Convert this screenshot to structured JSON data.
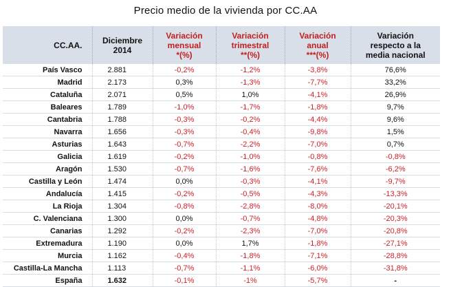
{
  "title": "Precio medio de la vivienda por CC.AA",
  "headers": {
    "ccaa": "CC.AA.",
    "diciembre": [
      "Diciembre",
      "2014"
    ],
    "mensual": [
      "Variación",
      "mensual",
      "*(%)"
    ],
    "trimestral": [
      "Variación",
      "trimestral",
      "**(%)"
    ],
    "anual": [
      "Variación",
      "anual",
      "***(%)"
    ],
    "nacional": [
      "Variación",
      "respecto a la",
      "media nacional"
    ]
  },
  "colors": {
    "header_bg": "#d9dfe9",
    "negative": "#d01f24",
    "header_red": "#c0201e"
  },
  "rows": [
    {
      "name": "País Vasco",
      "dic": "2.881",
      "mensual": "-0,2%",
      "trimestral": "-1,2%",
      "anual": "-3,8%",
      "nacional": "76,6%"
    },
    {
      "name": "Madrid",
      "dic": "2.173",
      "mensual": "0,3%",
      "trimestral": "-1,3%",
      "anual": "-7,7%",
      "nacional": "33,2%"
    },
    {
      "name": "Cataluña",
      "dic": "2.071",
      "mensual": "0,5%",
      "trimestral": "1,0%",
      "anual": "-4,1%",
      "nacional": "26,9%"
    },
    {
      "name": "Baleares",
      "dic": "1.789",
      "mensual": "-1,0%",
      "trimestral": "-1,7%",
      "anual": "-1,8%",
      "nacional": "9,7%"
    },
    {
      "name": "Cantabria",
      "dic": "1.788",
      "mensual": "-0,3%",
      "trimestral": "-0,2%",
      "anual": "-4,4%",
      "nacional": "9,6%"
    },
    {
      "name": "Navarra",
      "dic": "1.656",
      "mensual": "-0,3%",
      "trimestral": "-0,4%",
      "anual": "-9,8%",
      "nacional": "1,5%"
    },
    {
      "name": "Asturias",
      "dic": "1.643",
      "mensual": "-0,7%",
      "trimestral": "-2,2%",
      "anual": "-7,0%",
      "nacional": "0,7%"
    },
    {
      "name": "Galicia",
      "dic": "1.619",
      "mensual": "-0,2%",
      "trimestral": "-1,0%",
      "anual": "-0,8%",
      "nacional": "-0,8%"
    },
    {
      "name": "Aragón",
      "dic": "1.530",
      "mensual": "-0,7%",
      "trimestral": "-1,6%",
      "anual": "-7,6%",
      "nacional": "-6,2%"
    },
    {
      "name": "Castilla y León",
      "dic": "1.474",
      "mensual": "0,0%",
      "trimestral": "-0,3%",
      "anual": "-4,1%",
      "nacional": "-9,7%"
    },
    {
      "name": "Andalucía",
      "dic": "1.415",
      "mensual": "-0,2%",
      "trimestral": "-0,5%",
      "anual": "-4,3%",
      "nacional": "-13,3%"
    },
    {
      "name": "La Rioja",
      "dic": "1.304",
      "mensual": "-0,8%",
      "trimestral": "-2,8%",
      "anual": "-8,0%",
      "nacional": "-20,1%"
    },
    {
      "name": "C. Valenciana",
      "dic": "1.300",
      "mensual": "0,0%",
      "trimestral": "-0,7%",
      "anual": "-4,8%",
      "nacional": "-20,3%"
    },
    {
      "name": "Canarias",
      "dic": "1.292",
      "mensual": "-0,2%",
      "trimestral": "-2,3%",
      "anual": "-7,0%",
      "nacional": "-20,8%"
    },
    {
      "name": "Extremadura",
      "dic": "1.190",
      "mensual": "0,0%",
      "trimestral": "1,7%",
      "anual": "-1,8%",
      "nacional": "-27,1%"
    },
    {
      "name": "Murcia",
      "dic": "1.162",
      "mensual": "-0,4%",
      "trimestral": "-1,8%",
      "anual": "-7,1%",
      "nacional": "-28,8%"
    },
    {
      "name": "Castilla-La Mancha",
      "dic": "1.113",
      "mensual": "-0,7%",
      "trimestral": "-1,1%",
      "anual": "-6,0%",
      "nacional": "-31,8%"
    }
  ],
  "total": {
    "name": "España",
    "dic": "1.632",
    "mensual": "-0,1%",
    "trimestral": "-1%",
    "anual": "-5,7%",
    "nacional": "-"
  }
}
